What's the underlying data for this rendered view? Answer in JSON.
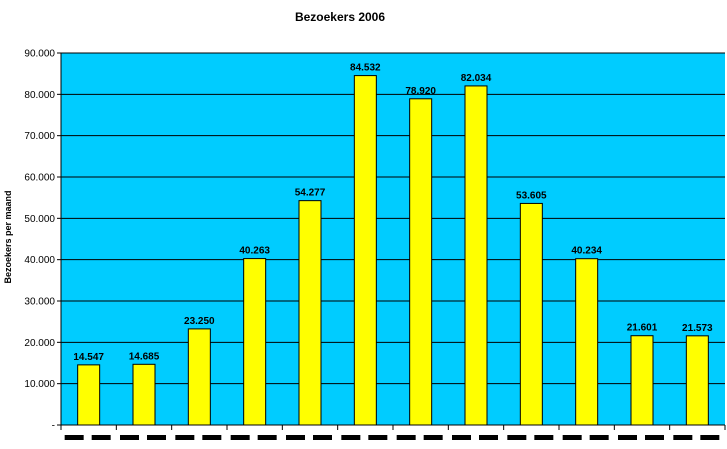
{
  "chart_data": {
    "type": "bar",
    "title": "Bezoekers 2006",
    "ylabel": "Bezoekers per maand",
    "xlabel": "",
    "ylim": [
      0,
      90000
    ],
    "ytick_labels": [
      "-",
      "10.000",
      "20.000",
      "30.000",
      "40.000",
      "50.000",
      "60.000",
      "70.000",
      "80.000",
      "90.000"
    ],
    "grid": true,
    "categories": [
      "",
      "",
      "",
      "",
      "",
      "",
      "",
      "",
      "",
      "",
      "",
      ""
    ],
    "values": [
      14547,
      14685,
      23250,
      40263,
      54277,
      84532,
      78920,
      82034,
      53605,
      40234,
      21601,
      21573
    ],
    "value_labels": [
      "14.547",
      "14.685",
      "23.250",
      "40.263",
      "54.277",
      "84.532",
      "78.920",
      "82.034",
      "53.605",
      "40.234",
      "21.601",
      "21.573"
    ],
    "colors": {
      "plot_area": "#00ccff",
      "bar": "#ffff00",
      "bar_edge": "#000000",
      "grid": "#000000"
    }
  }
}
